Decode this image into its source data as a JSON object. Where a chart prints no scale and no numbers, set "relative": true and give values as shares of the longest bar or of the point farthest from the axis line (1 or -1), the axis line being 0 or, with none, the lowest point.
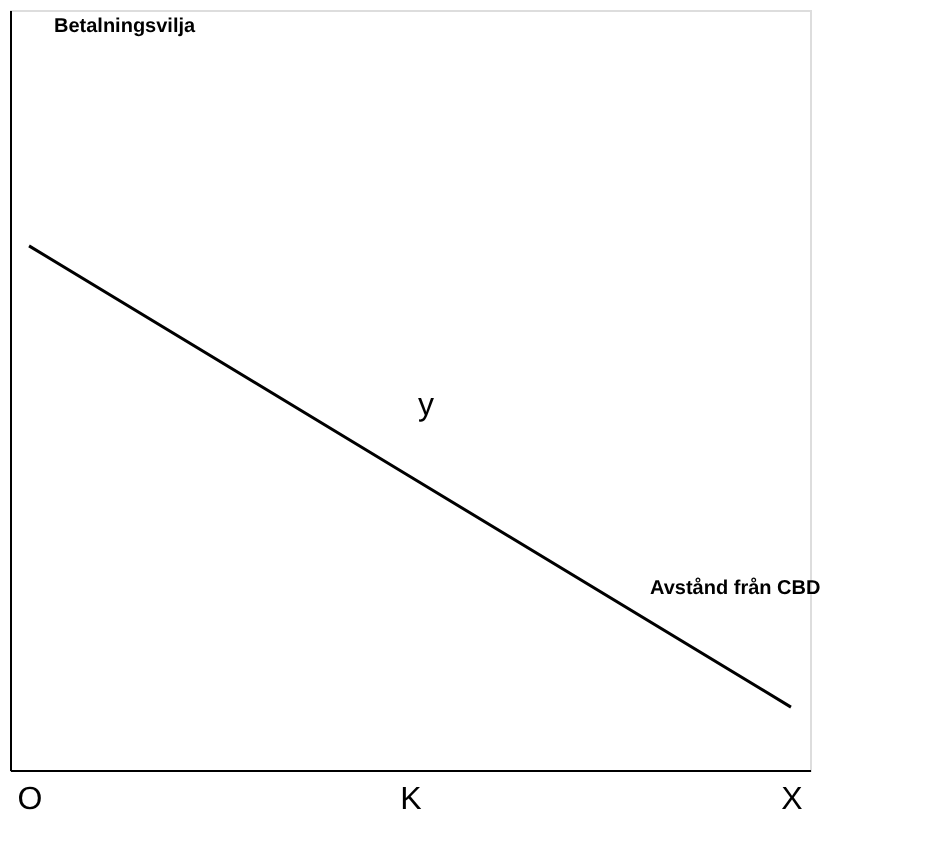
{
  "chart_data": {
    "type": "line",
    "relative": true,
    "categories": [
      "O",
      "K",
      "X"
    ],
    "series": [
      {
        "color": "#000000",
        "values": [
          1,
          0.56,
          0.12
        ]
      }
    ],
    "annotations": [
      "Betalningsvilja",
      "y",
      "Avstånd från CBD"
    ],
    "grid": false,
    "marker": "none",
    "line_style": "solid"
  }
}
